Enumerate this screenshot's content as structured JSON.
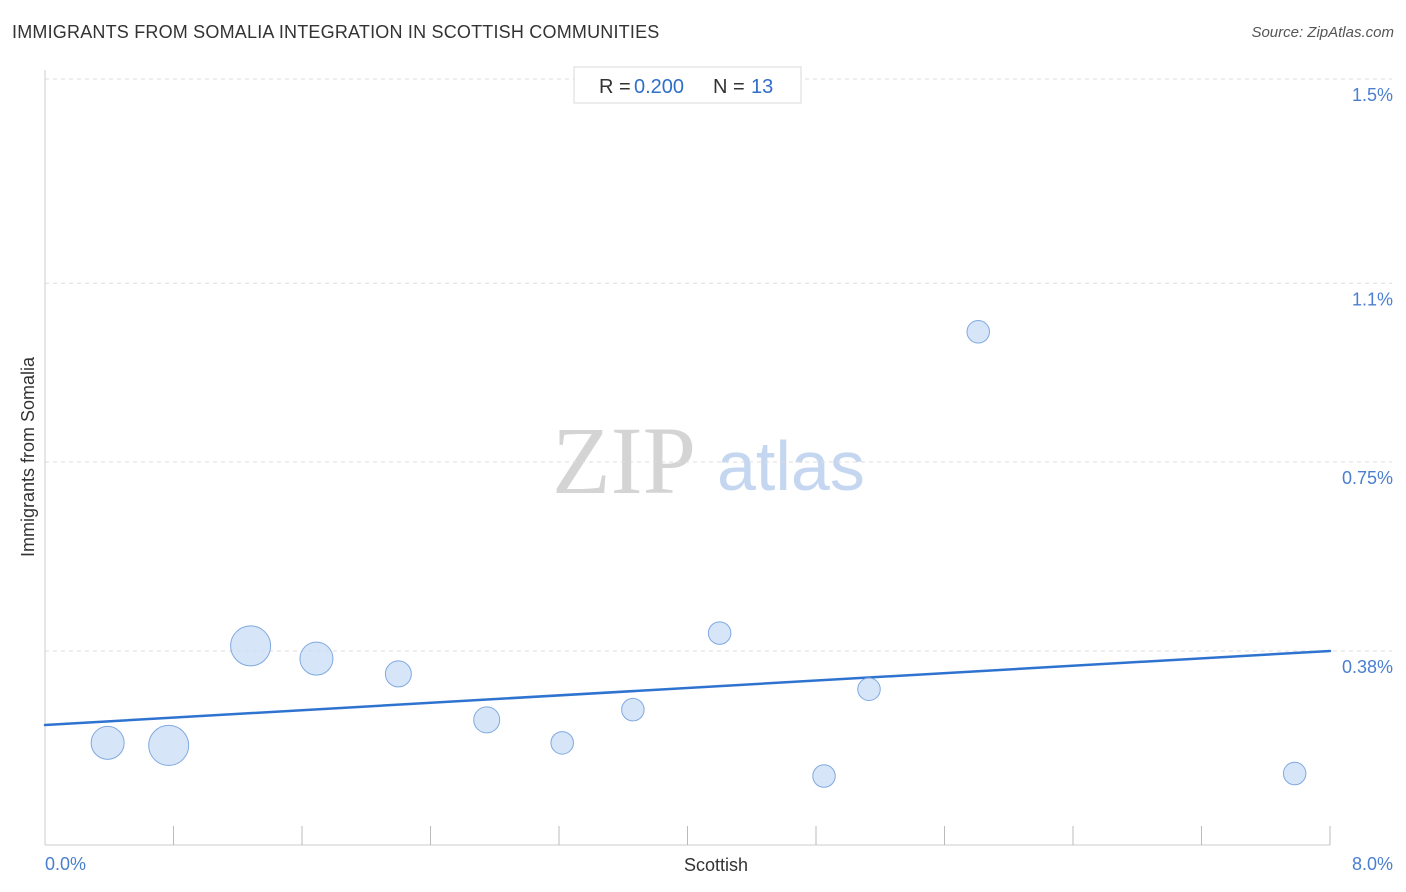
{
  "header": {
    "title": "IMMIGRANTS FROM SOMALIA INTEGRATION IN SCOTTISH COMMUNITIES",
    "source": "Source: ZipAtlas.com"
  },
  "stats": {
    "r_label": "R =",
    "r_value": "0.200",
    "n_label": "N =",
    "n_value": "13"
  },
  "watermark": {
    "zip": "ZIP",
    "atlas": "atlas"
  },
  "colors": {
    "point_fill": "#c9dcf5",
    "point_stroke": "#7fa9e0",
    "trend_line": "#2f73d0",
    "tick_label": "#4a7fd0"
  },
  "chart_data": {
    "type": "scatter",
    "title": "IMMIGRANTS FROM SOMALIA INTEGRATION IN SCOTTISH COMMUNITIES",
    "xlabel": "Scottish",
    "ylabel": "Immigrants from Somalia",
    "xlim": [
      0,
      8.0
    ],
    "ylim": [
      0,
      1.5
    ],
    "x_tick_labels": [
      {
        "value": 0,
        "label": "0.0%"
      },
      {
        "value": 8.0,
        "label": "8.0%"
      }
    ],
    "y_tick_labels": [
      {
        "value": 0.38,
        "label": "0.38%"
      },
      {
        "value": 0.75,
        "label": "0.75%"
      },
      {
        "value": 1.1,
        "label": "1.1%"
      },
      {
        "value": 1.5,
        "label": "1.5%"
      }
    ],
    "grid": "horizontal dashed",
    "points": [
      {
        "x": 0.39,
        "y": 0.2,
        "size": 3
      },
      {
        "x": 0.77,
        "y": 0.195,
        "size": 4
      },
      {
        "x": 1.28,
        "y": 0.39,
        "size": 4
      },
      {
        "x": 1.69,
        "y": 0.365,
        "size": 3
      },
      {
        "x": 2.2,
        "y": 0.335,
        "size": 2
      },
      {
        "x": 2.75,
        "y": 0.245,
        "size": 2
      },
      {
        "x": 3.22,
        "y": 0.2,
        "size": 1.5
      },
      {
        "x": 3.66,
        "y": 0.265,
        "size": 1.5
      },
      {
        "x": 4.2,
        "y": 0.415,
        "size": 1.5
      },
      {
        "x": 4.85,
        "y": 0.135,
        "size": 1.5
      },
      {
        "x": 5.13,
        "y": 0.305,
        "size": 1.5
      },
      {
        "x": 5.81,
        "y": 1.005,
        "size": 1.5
      },
      {
        "x": 7.78,
        "y": 0.14,
        "size": 1.5
      }
    ],
    "trend": {
      "x": [
        0,
        8.0
      ],
      "y": [
        0.235,
        0.38
      ]
    }
  }
}
